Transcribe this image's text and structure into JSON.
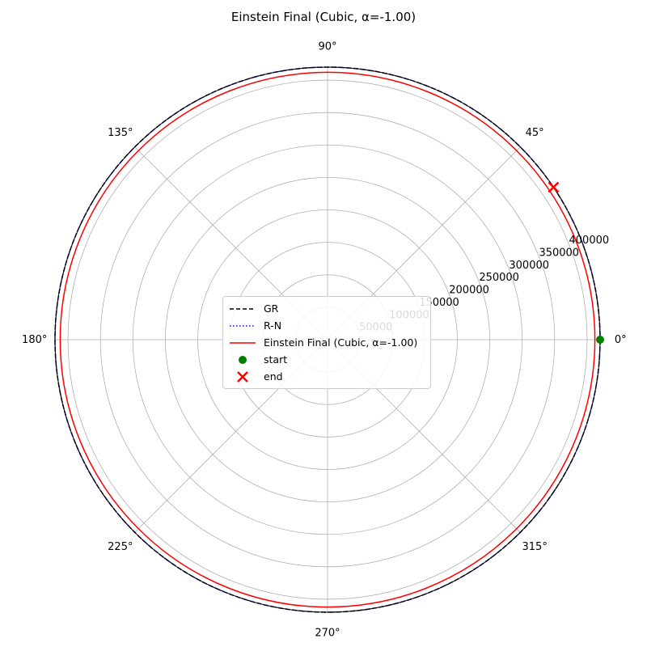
{
  "chart_data": {
    "type": "polar",
    "title": "Einstein Final (Cubic, α=-1.00)",
    "rlim": [
      0,
      420000
    ],
    "radial_ticks": [
      50000,
      100000,
      150000,
      200000,
      250000,
      300000,
      350000,
      400000
    ],
    "radial_tick_labels": [
      "50000",
      "100000",
      "150000",
      "200000",
      "250000",
      "300000",
      "350000",
      "400000"
    ],
    "angle_ticks_deg": [
      0,
      45,
      90,
      135,
      180,
      225,
      270,
      315
    ],
    "angle_tick_labels": [
      "0°",
      "45°",
      "90°",
      "135°",
      "180°",
      "225°",
      "270°",
      "315°"
    ],
    "grid": true,
    "legend_position": "center",
    "series": [
      {
        "name": "GR",
        "style": "dashed",
        "color": "#000000",
        "radius": 420000,
        "theta_range_deg": [
          0,
          360
        ]
      },
      {
        "name": "R-N",
        "style": "dotted",
        "color": "#0000ff",
        "radius": 420000,
        "theta_range_deg": [
          0,
          360
        ]
      },
      {
        "name": "Einstein Final (Cubic, α=-1.00)",
        "style": "solid",
        "color": "#ff0000",
        "radius": 412000,
        "theta_range_deg": [
          0,
          360
        ]
      }
    ],
    "markers": [
      {
        "name": "start",
        "shape": "circle",
        "color": "#008000",
        "r": 420000,
        "theta_deg": 0
      },
      {
        "name": "end",
        "shape": "x",
        "color": "#ff0000",
        "r": 420000,
        "theta_deg": 34
      }
    ]
  }
}
